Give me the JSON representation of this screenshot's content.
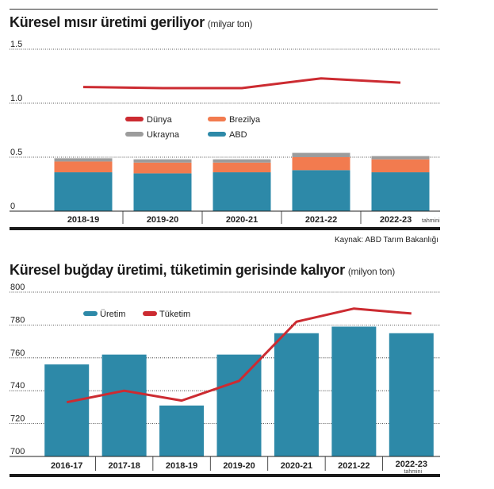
{
  "chart_data": [
    {
      "type": "bar",
      "stacked": true,
      "title": "Küresel mısır üretimi geriliyor",
      "unit": "(milyar ton)",
      "categories": [
        "2018-19",
        "2019-20",
        "2020-21",
        "2021-22",
        "2022-23"
      ],
      "category_note": {
        "index": 4,
        "text": "tahmini"
      },
      "ylim": [
        0,
        1.5
      ],
      "yticks": [
        {
          "value": 0,
          "label": "0"
        },
        {
          "value": 0.5,
          "label": "0.5"
        },
        {
          "value": 1.0,
          "label": "1.0"
        },
        {
          "value": 1.5,
          "label": "1.5"
        }
      ],
      "series": [
        {
          "name": "ABD",
          "color": "#2d89a8",
          "values": [
            0.36,
            0.35,
            0.36,
            0.38,
            0.36
          ]
        },
        {
          "name": "Brezilya",
          "color": "#f27b4f",
          "values": [
            0.1,
            0.1,
            0.09,
            0.12,
            0.12
          ]
        },
        {
          "name": "Ukrayna",
          "color": "#9c9c9c",
          "values": [
            0.03,
            0.03,
            0.03,
            0.04,
            0.03
          ]
        }
      ],
      "line": {
        "name": "Dünya",
        "color": "#cc2b31",
        "values": [
          1.15,
          1.14,
          1.14,
          1.23,
          1.19
        ]
      },
      "legend": [
        {
          "name": "Dünya",
          "color": "#cc2b31"
        },
        {
          "name": "Brezilya",
          "color": "#f27b4f"
        },
        {
          "name": "Ukrayna",
          "color": "#9c9c9c"
        },
        {
          "name": "ABD",
          "color": "#2d89a8"
        }
      ],
      "source": "Kaynak: ABD Tarım Bakanlığı"
    },
    {
      "type": "bar",
      "title": "Küresel buğday üretimi, tüketimin gerisinde kalıyor",
      "unit": "(milyon ton)",
      "categories": [
        "2016-17",
        "2017-18",
        "2018-19",
        "2019-20",
        "2020-21",
        "2021-22",
        "2022-23"
      ],
      "category_note": {
        "index": 6,
        "text": "tahmini"
      },
      "ylim": [
        700,
        800
      ],
      "yticks": [
        {
          "value": 700,
          "label": "700"
        },
        {
          "value": 720,
          "label": "720"
        },
        {
          "value": 740,
          "label": "740"
        },
        {
          "value": 760,
          "label": "760"
        },
        {
          "value": 780,
          "label": "780"
        },
        {
          "value": 800,
          "label": "800"
        }
      ],
      "series": [
        {
          "name": "Üretim",
          "color": "#2d89a8",
          "values": [
            756,
            762,
            731,
            762,
            775,
            779,
            775
          ]
        }
      ],
      "line": {
        "name": "Tüketim",
        "color": "#cc2b31",
        "values": [
          733,
          740,
          734,
          746,
          782,
          790,
          787
        ]
      },
      "legend": [
        {
          "name": "Üretim",
          "color": "#2d89a8"
        },
        {
          "name": "Tüketim",
          "color": "#cc2b31"
        }
      ]
    }
  ]
}
